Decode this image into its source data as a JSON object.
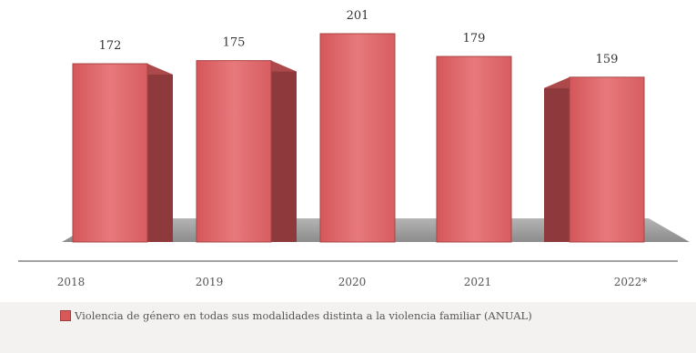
{
  "chart_data": {
    "type": "bar",
    "categories": [
      "2018",
      "2019",
      "2020",
      "2021",
      "2022*"
    ],
    "values": [
      172,
      175,
      201,
      179,
      159
    ],
    "series": [
      {
        "name": "Violencia de género en todas sus modalidades distinta a la violencia familiar (ANUAL)",
        "values": [
          172,
          175,
          201,
          179,
          159
        ]
      }
    ],
    "title": "",
    "xlabel": "",
    "ylabel": "",
    "ylim": [
      0,
      210
    ],
    "grid": false,
    "legend_position": "bottom",
    "colors": {
      "bar_front": "#e06b6d",
      "bar_side": "#8e3a3c",
      "bar_top": "#c95557",
      "floor": "#9a9a9a"
    }
  }
}
